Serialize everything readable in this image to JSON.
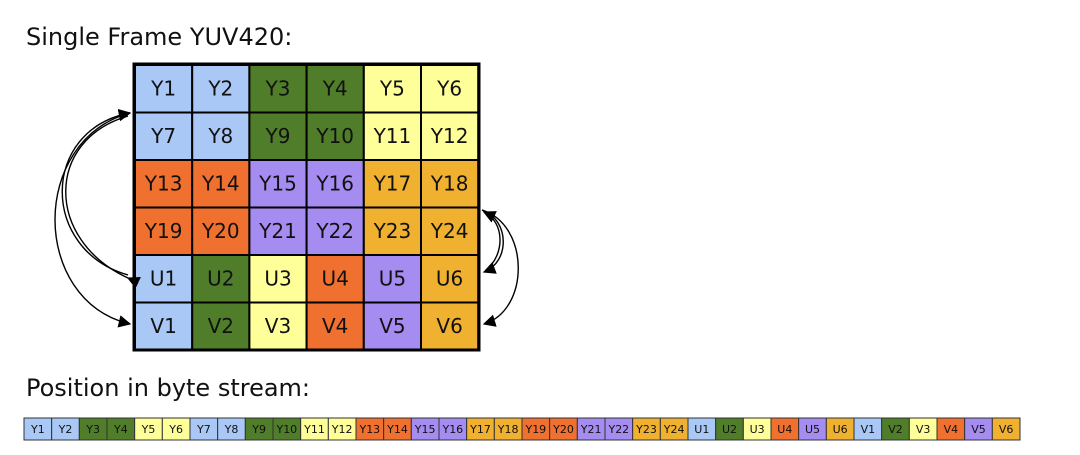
{
  "title": "Single Frame YUV420:",
  "grid": {
    "rows": [
      [
        {
          "label": "Y1",
          "color": "#a9c8f5"
        },
        {
          "label": "Y2",
          "color": "#a9c8f5"
        },
        {
          "label": "Y3",
          "color": "#4f7d2a"
        },
        {
          "label": "Y4",
          "color": "#4f7d2a"
        },
        {
          "label": "Y5",
          "color": "#ffff99"
        },
        {
          "label": "Y6",
          "color": "#ffff99"
        }
      ],
      [
        {
          "label": "Y7",
          "color": "#a9c8f5"
        },
        {
          "label": "Y8",
          "color": "#a9c8f5"
        },
        {
          "label": "Y9",
          "color": "#4f7d2a"
        },
        {
          "label": "Y10",
          "color": "#4f7d2a"
        },
        {
          "label": "Y11",
          "color": "#ffff99"
        },
        {
          "label": "Y12",
          "color": "#ffff99"
        }
      ],
      [
        {
          "label": "Y13",
          "color": "#f07030"
        },
        {
          "label": "Y14",
          "color": "#f07030"
        },
        {
          "label": "Y15",
          "color": "#a58cf0"
        },
        {
          "label": "Y16",
          "color": "#a58cf0"
        },
        {
          "label": "Y17",
          "color": "#f0b030"
        },
        {
          "label": "Y18",
          "color": "#f0b030"
        }
      ],
      [
        {
          "label": "Y19",
          "color": "#f07030"
        },
        {
          "label": "Y20",
          "color": "#f07030"
        },
        {
          "label": "Y21",
          "color": "#a58cf0"
        },
        {
          "label": "Y22",
          "color": "#a58cf0"
        },
        {
          "label": "Y23",
          "color": "#f0b030"
        },
        {
          "label": "Y24",
          "color": "#f0b030"
        }
      ],
      [
        {
          "label": "U1",
          "color": "#a9c8f5"
        },
        {
          "label": "U2",
          "color": "#4f7d2a"
        },
        {
          "label": "U3",
          "color": "#ffff99"
        },
        {
          "label": "U4",
          "color": "#f07030"
        },
        {
          "label": "U5",
          "color": "#a58cf0"
        },
        {
          "label": "U6",
          "color": "#f0b030"
        }
      ],
      [
        {
          "label": "V1",
          "color": "#a9c8f5"
        },
        {
          "label": "V2",
          "color": "#4f7d2a"
        },
        {
          "label": "V3",
          "color": "#ffff99"
        },
        {
          "label": "V4",
          "color": "#f07030"
        },
        {
          "label": "V5",
          "color": "#a58cf0"
        },
        {
          "label": "V6",
          "color": "#f0b030"
        }
      ]
    ]
  },
  "stream": {
    "title": "Position in byte stream:",
    "cells": [
      {
        "label": "Y1",
        "color": "#a9c8f5"
      },
      {
        "label": "Y2",
        "color": "#a9c8f5"
      },
      {
        "label": "Y3",
        "color": "#4f7d2a"
      },
      {
        "label": "Y4",
        "color": "#4f7d2a"
      },
      {
        "label": "Y5",
        "color": "#ffff99"
      },
      {
        "label": "Y6",
        "color": "#ffff99"
      },
      {
        "label": "Y7",
        "color": "#a9c8f5"
      },
      {
        "label": "Y8",
        "color": "#a9c8f5"
      },
      {
        "label": "Y9",
        "color": "#4f7d2a"
      },
      {
        "label": "Y10",
        "color": "#4f7d2a"
      },
      {
        "label": "Y11",
        "color": "#ffff99"
      },
      {
        "label": "Y12",
        "color": "#ffff99"
      },
      {
        "label": "Y13",
        "color": "#f07030"
      },
      {
        "label": "Y14",
        "color": "#f07030"
      },
      {
        "label": "Y15",
        "color": "#a58cf0"
      },
      {
        "label": "Y16",
        "color": "#a58cf0"
      },
      {
        "label": "Y17",
        "color": "#f0b030"
      },
      {
        "label": "Y18",
        "color": "#f0b030"
      },
      {
        "label": "Y19",
        "color": "#f07030"
      },
      {
        "label": "Y20",
        "color": "#f07030"
      },
      {
        "label": "Y21",
        "color": "#a58cf0"
      },
      {
        "label": "Y22",
        "color": "#a58cf0"
      },
      {
        "label": "Y23",
        "color": "#f0b030"
      },
      {
        "label": "Y24",
        "color": "#f0b030"
      },
      {
        "label": "U1",
        "color": "#a9c8f5"
      },
      {
        "label": "U2",
        "color": "#4f7d2a"
      },
      {
        "label": "U3",
        "color": "#ffff99"
      },
      {
        "label": "U4",
        "color": "#f07030"
      },
      {
        "label": "U5",
        "color": "#a58cf0"
      },
      {
        "label": "U6",
        "color": "#f0b030"
      },
      {
        "label": "V1",
        "color": "#a9c8f5"
      },
      {
        "label": "V2",
        "color": "#4f7d2a"
      },
      {
        "label": "V3",
        "color": "#ffff99"
      },
      {
        "label": "V4",
        "color": "#f07030"
      },
      {
        "label": "V5",
        "color": "#a58cf0"
      },
      {
        "label": "V6",
        "color": "#f0b030"
      }
    ]
  }
}
